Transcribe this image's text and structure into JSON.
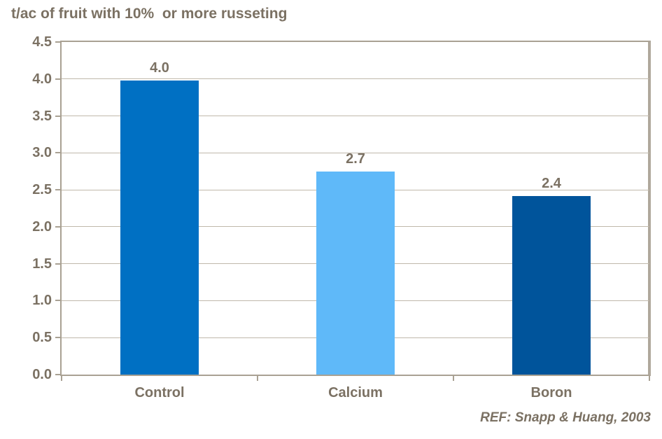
{
  "title": "t/ac of fruit with 10%  or more russeting",
  "ref_note": "REF: Snapp & Huang, 2003",
  "colors": {
    "text": "#7b7163",
    "gridline": "#c0b8ab",
    "axis": "#a9a193",
    "background": "#ffffff"
  },
  "chart_data": {
    "type": "bar",
    "title": "t/ac of fruit with 10% or more russeting",
    "categories": [
      "Control",
      "Calcium",
      "Boron"
    ],
    "values": [
      4.0,
      2.7,
      2.4
    ],
    "value_labels": [
      "4.0",
      "2.7",
      "2.4"
    ],
    "plotted_values": [
      3.98,
      2.75,
      2.42
    ],
    "bar_colors": [
      "#0070c3",
      "#5fb9f9",
      "#00549b"
    ],
    "xlabel": "",
    "ylabel": "",
    "ylim": [
      0,
      4.5
    ],
    "ytick_step": 0.5,
    "ytick_labels": [
      "0.0",
      "0.5",
      "1.0",
      "1.5",
      "2.0",
      "2.5",
      "3.0",
      "3.5",
      "4.0",
      "4.5"
    ],
    "grid": true,
    "legend": "none",
    "annotation": "REF: Snapp & Huang, 2003"
  }
}
